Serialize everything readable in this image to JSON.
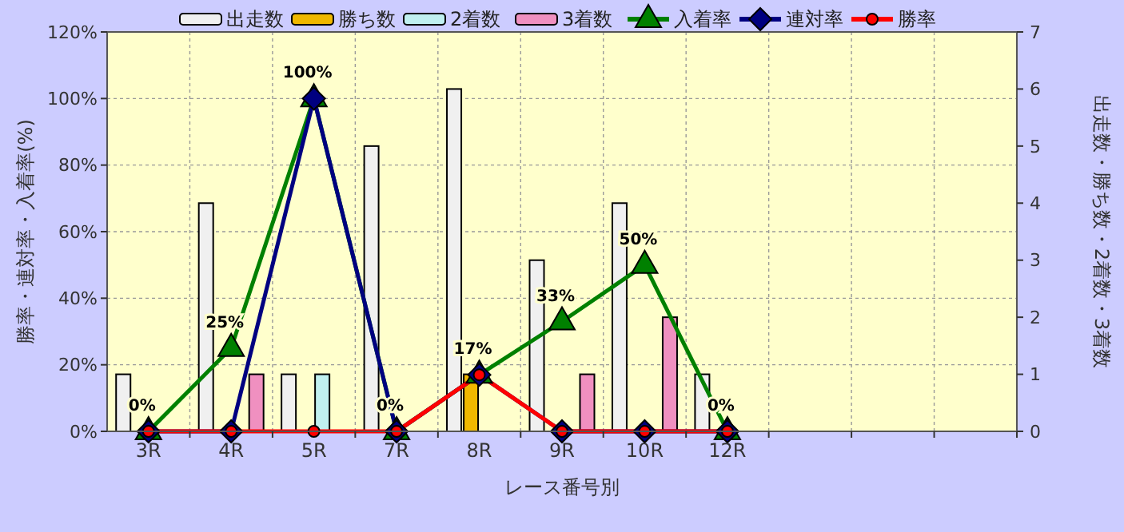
{
  "chart_data": {
    "type": "bar",
    "xlabel": "レース番号別",
    "ylabel": "勝率・連対率・入着率(%)",
    "y2label": "出走数・勝ち数・2着数・3着数",
    "categories": [
      "3R",
      "4R",
      "5R",
      "7R",
      "8R",
      "9R",
      "10R",
      "12R",
      null,
      null,
      null
    ],
    "series": [
      {
        "name": "出走数",
        "type": "bar",
        "axis": "y2",
        "color": "#f0f0f0",
        "values": [
          1,
          4,
          1,
          5,
          6,
          3,
          4,
          1,
          null,
          null,
          null
        ]
      },
      {
        "name": "勝ち数",
        "type": "bar",
        "axis": "y2",
        "color": "#f0b800",
        "values": [
          0,
          0,
          0,
          0,
          1,
          0,
          0,
          0,
          null,
          null,
          null
        ]
      },
      {
        "name": "2着数",
        "type": "bar",
        "axis": "y2",
        "color": "#c0f0f0",
        "values": [
          0,
          0,
          1,
          0,
          0,
          0,
          0,
          0,
          null,
          null,
          null
        ]
      },
      {
        "name": "3着数",
        "type": "bar",
        "axis": "y2",
        "color": "#f090c0",
        "values": [
          0,
          1,
          0,
          0,
          0,
          1,
          2,
          0,
          null,
          null,
          null
        ]
      },
      {
        "name": "入着率",
        "type": "line",
        "axis": "y",
        "color": "#008000",
        "marker": "triangle",
        "values": [
          0,
          25,
          100,
          0,
          17,
          33,
          50,
          0,
          null,
          null,
          null
        ],
        "value_labels": [
          "0%",
          "25%",
          "100%",
          "0%",
          "17%",
          "33%",
          "50%",
          "0%",
          null,
          null,
          null
        ]
      },
      {
        "name": "連対率",
        "type": "line",
        "axis": "y",
        "color": "#000080",
        "marker": "diamond",
        "values": [
          0,
          0,
          100,
          0,
          17,
          0,
          0,
          0,
          null,
          null,
          null
        ]
      },
      {
        "name": "勝率",
        "type": "line",
        "axis": "y",
        "color": "#ff0000",
        "marker": "circle",
        "values": [
          0,
          0,
          0,
          0,
          17,
          0,
          0,
          0,
          null,
          null,
          null
        ]
      }
    ],
    "ylim": [
      0,
      120
    ],
    "yticks": [
      {
        "value": 0,
        "label": "0%"
      },
      {
        "value": 20,
        "label": "20%"
      },
      {
        "value": 40,
        "label": "40%"
      },
      {
        "value": 60,
        "label": "60%"
      },
      {
        "value": 80,
        "label": "80%"
      },
      {
        "value": 100,
        "label": "100%"
      },
      {
        "value": 120,
        "label": "120%"
      }
    ],
    "y2lim": [
      0,
      7
    ],
    "y2ticks": [
      0,
      1,
      2,
      3,
      4,
      5,
      6,
      7
    ],
    "grid": true,
    "legend": "top"
  }
}
